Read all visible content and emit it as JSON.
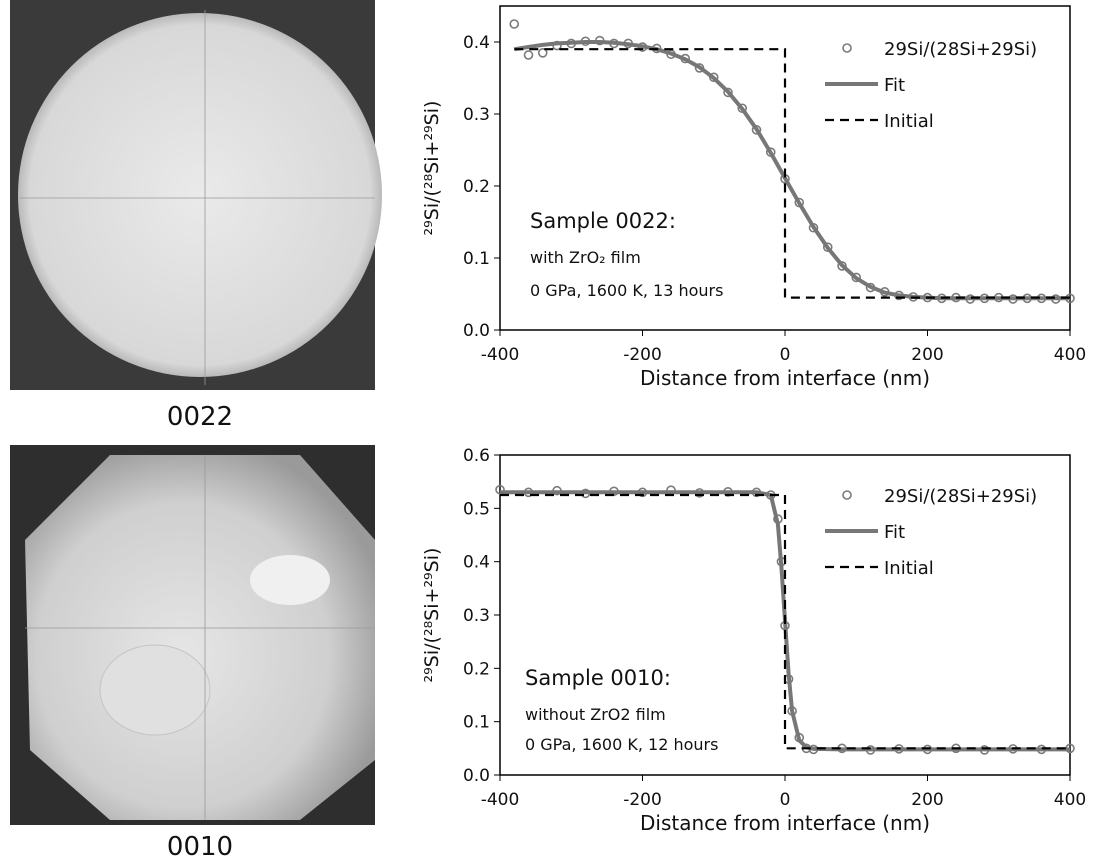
{
  "images": [
    {
      "label": "0022"
    },
    {
      "label": "0010"
    }
  ],
  "chart_data": [
    {
      "type": "scatter",
      "ylabel": "²⁹Si/(²⁸Si+²⁹Si)",
      "xlabel": "Distance from interface (nm)",
      "annotations": [
        "Sample 0022:",
        "with  ZrO₂ film",
        "0 GPa, 1600 K, 13 hours"
      ],
      "xlim": [
        -400,
        400
      ],
      "xticks": [
        -400,
        -200,
        0,
        200,
        400
      ],
      "ylim": [
        0,
        0.45
      ],
      "yticks": [
        {
          "value": 0,
          "label": "0.0"
        },
        0.1,
        0.2,
        0.3,
        0.4
      ],
      "legend": "top right",
      "series": [
        {
          "name": "29Si/(28Si+29Si)",
          "style": "circle",
          "color": "#7a7a7a",
          "x": [
            -380,
            -360,
            -340,
            -320,
            -300,
            -280,
            -260,
            -240,
            -220,
            -200,
            -180,
            -160,
            -140,
            -120,
            -100,
            -80,
            -60,
            -40,
            -20,
            0,
            20,
            40,
            60,
            80,
            100,
            120,
            140,
            160,
            180,
            200,
            220,
            240,
            260,
            280,
            300,
            320,
            340,
            360,
            380,
            400
          ],
          "values": [
            0.425,
            0.382,
            0.385,
            0.395,
            0.398,
            0.401,
            0.402,
            0.398,
            0.398,
            0.393,
            0.391,
            0.383,
            0.377,
            0.364,
            0.351,
            0.33,
            0.308,
            0.278,
            0.247,
            0.21,
            0.177,
            0.142,
            0.115,
            0.089,
            0.073,
            0.059,
            0.053,
            0.048,
            0.046,
            0.045,
            0.044,
            0.045,
            0.043,
            0.044,
            0.045,
            0.043,
            0.044,
            0.044,
            0.043,
            0.044
          ]
        },
        {
          "name": "Fit",
          "style": "line",
          "color": "#777777",
          "x": [
            -380,
            -360,
            -340,
            -320,
            -300,
            -280,
            -260,
            -240,
            -220,
            -200,
            -180,
            -160,
            -140,
            -120,
            -100,
            -80,
            -60,
            -40,
            -20,
            0,
            20,
            40,
            60,
            80,
            100,
            120,
            140,
            160,
            180,
            200,
            220,
            240,
            260,
            280,
            300,
            320,
            340,
            360,
            380,
            400
          ],
          "values": [
            0.39,
            0.393,
            0.396,
            0.398,
            0.399,
            0.4,
            0.4,
            0.399,
            0.397,
            0.394,
            0.39,
            0.384,
            0.376,
            0.365,
            0.35,
            0.331,
            0.307,
            0.279,
            0.246,
            0.211,
            0.176,
            0.143,
            0.114,
            0.09,
            0.072,
            0.06,
            0.052,
            0.048,
            0.046,
            0.045,
            0.044,
            0.044,
            0.044,
            0.044,
            0.044,
            0.044,
            0.044,
            0.044,
            0.044,
            0.044
          ]
        },
        {
          "name": "Initial",
          "style": "dashed",
          "color": "#000000",
          "x": [
            -380,
            0,
            0,
            400
          ],
          "values": [
            0.39,
            0.39,
            0.045,
            0.045
          ]
        }
      ]
    },
    {
      "type": "scatter",
      "ylabel": "²⁹Si/(²⁸Si+²⁹Si)",
      "xlabel": "Distance from interface (nm)",
      "annotations": [
        "Sample 0010:",
        "without ZrO2 film",
        "0 GPa, 1600 K, 12 hours"
      ],
      "xlim": [
        -400,
        400
      ],
      "xticks": [
        -400,
        -200,
        0,
        200,
        400
      ],
      "ylim": [
        0,
        0.6
      ],
      "yticks": [
        {
          "value": 0,
          "label": "0.0"
        },
        0.1,
        0.2,
        0.3,
        0.4,
        0.5,
        0.6
      ],
      "legend": "top right",
      "series": [
        {
          "name": "29Si/(28Si+29Si)",
          "style": "circle",
          "color": "#7a7a7a",
          "x": [
            -400,
            -360,
            -320,
            -280,
            -240,
            -200,
            -160,
            -120,
            -80,
            -40,
            -20,
            -10,
            -5,
            0,
            5,
            10,
            20,
            30,
            40,
            80,
            120,
            160,
            200,
            240,
            280,
            320,
            360,
            400
          ],
          "values": [
            0.535,
            0.53,
            0.533,
            0.528,
            0.532,
            0.53,
            0.534,
            0.529,
            0.531,
            0.53,
            0.525,
            0.48,
            0.4,
            0.28,
            0.18,
            0.12,
            0.07,
            0.05,
            0.048,
            0.05,
            0.047,
            0.049,
            0.048,
            0.05,
            0.047,
            0.049,
            0.048,
            0.05
          ]
        },
        {
          "name": "Fit",
          "style": "line",
          "color": "#777777",
          "x": [
            -400,
            -360,
            -320,
            -280,
            -240,
            -200,
            -160,
            -120,
            -80,
            -40,
            -20,
            -10,
            -5,
            0,
            5,
            10,
            20,
            30,
            40,
            80,
            120,
            160,
            200,
            240,
            280,
            320,
            360,
            400
          ],
          "values": [
            0.53,
            0.53,
            0.53,
            0.53,
            0.53,
            0.53,
            0.53,
            0.53,
            0.53,
            0.53,
            0.525,
            0.47,
            0.39,
            0.29,
            0.19,
            0.12,
            0.065,
            0.052,
            0.049,
            0.048,
            0.048,
            0.048,
            0.048,
            0.048,
            0.048,
            0.048,
            0.048,
            0.048
          ]
        },
        {
          "name": "Initial",
          "style": "dashed",
          "color": "#000000",
          "x": [
            -400,
            0,
            0,
            400
          ],
          "values": [
            0.525,
            0.525,
            0.05,
            0.05
          ]
        }
      ]
    }
  ]
}
